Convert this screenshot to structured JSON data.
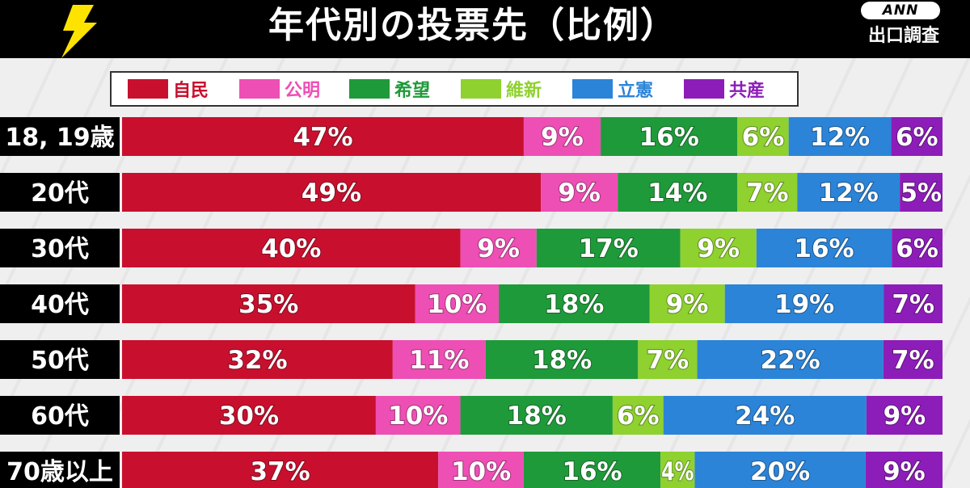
{
  "header": {
    "title": "年代別の投票先（比例）",
    "badge": "ANN",
    "subtitle": "出口調査"
  },
  "chart_data": {
    "type": "bar",
    "stacked": true,
    "orientation": "horizontal",
    "title": "年代別の投票先（比例）",
    "categories": [
      "18, 19歳",
      "20代",
      "30代",
      "40代",
      "50代",
      "60代",
      "70歳以上"
    ],
    "series": [
      {
        "name": "自民",
        "color": "#c8102e",
        "values": [
          47,
          49,
          40,
          35,
          32,
          30,
          37
        ]
      },
      {
        "name": "公明",
        "color": "#ee4fb4",
        "values": [
          9,
          9,
          9,
          10,
          11,
          10,
          10
        ]
      },
      {
        "name": "希望",
        "color": "#1f9a3a",
        "values": [
          16,
          14,
          17,
          18,
          18,
          18,
          16
        ]
      },
      {
        "name": "維新",
        "color": "#8fd12f",
        "values": [
          6,
          7,
          9,
          9,
          7,
          6,
          4
        ]
      },
      {
        "name": "立憲",
        "color": "#2b84d8",
        "values": [
          12,
          12,
          16,
          19,
          22,
          24,
          20
        ]
      },
      {
        "name": "共産",
        "color": "#8d1db8",
        "values": [
          6,
          5,
          6,
          7,
          7,
          9,
          9
        ]
      }
    ],
    "value_suffix": "%",
    "legend_position": "top"
  }
}
